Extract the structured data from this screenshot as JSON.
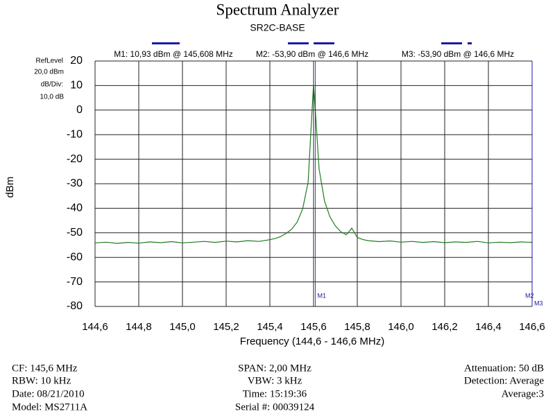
{
  "chart_data": {
    "type": "line",
    "title": "Spectrum Analyzer",
    "subtitle": "SR2C-BASE",
    "xlabel": "Frequency (144,6 - 146,6 MHz)",
    "ylabel": "dBm",
    "xlim": [
      144.6,
      146.6
    ],
    "ylim": [
      -80,
      20
    ],
    "xticks": [
      {
        "value": 144.6,
        "label": "144,6"
      },
      {
        "value": 144.8,
        "label": "144,8"
      },
      {
        "value": 145.0,
        "label": "145,0"
      },
      {
        "value": 145.2,
        "label": "145,2"
      },
      {
        "value": 145.4,
        "label": "145,4"
      },
      {
        "value": 145.6,
        "label": "145,6"
      },
      {
        "value": 145.8,
        "label": "145,8"
      },
      {
        "value": 146.0,
        "label": "146,0"
      },
      {
        "value": 146.2,
        "label": "146,2"
      },
      {
        "value": 146.4,
        "label": "146,4"
      },
      {
        "value": 146.6,
        "label": "146,6"
      }
    ],
    "yticks": [
      20,
      10,
      0,
      -10,
      -20,
      -30,
      -40,
      -50,
      -60,
      -70,
      -80
    ],
    "grid": true,
    "x": [
      144.6,
      144.65,
      144.7,
      144.75,
      144.8,
      144.85,
      144.9,
      144.95,
      145.0,
      145.05,
      145.1,
      145.15,
      145.2,
      145.25,
      145.3,
      145.35,
      145.4,
      145.425,
      145.45,
      145.475,
      145.5,
      145.525,
      145.55,
      145.575,
      145.6,
      145.625,
      145.65,
      145.675,
      145.7,
      145.725,
      145.75,
      145.775,
      145.8,
      145.825,
      145.85,
      145.9,
      145.95,
      146.0,
      146.05,
      146.1,
      146.15,
      146.2,
      146.25,
      146.3,
      146.35,
      146.4,
      146.45,
      146.5,
      146.55,
      146.6
    ],
    "series": [
      {
        "color": "#1f7a1f",
        "values": [
          -54.1,
          -53.8,
          -54.3,
          -53.9,
          -54.2,
          -53.7,
          -54.0,
          -53.6,
          -54.1,
          -53.8,
          -53.5,
          -53.9,
          -53.4,
          -53.7,
          -53.2,
          -53.5,
          -52.8,
          -52.3,
          -51.5,
          -50.2,
          -48.5,
          -45.6,
          -40.2,
          -29.5,
          10.93,
          -23.8,
          -37.1,
          -43.5,
          -47.2,
          -49.6,
          -50.8,
          -48.1,
          -51.9,
          -52.7,
          -53.2,
          -53.6,
          -53.3,
          -53.8,
          -53.5,
          -53.9,
          -53.6,
          -54.0,
          -53.7,
          -53.9,
          -53.5,
          -54.1,
          -53.8,
          -54.0,
          -53.7,
          -53.9
        ]
      }
    ],
    "markers": [
      {
        "label": "M1",
        "x": 145.608,
        "value": 10.93,
        "readout": "M1: 10,93 dBm @ 145,608 MHz"
      },
      {
        "label": "M2",
        "x": 146.6,
        "value": -53.9,
        "readout": "M2: -53,90 dBm @ 146,6 MHz"
      },
      {
        "label": "M3",
        "x": 146.6,
        "value": -53.9,
        "readout": "M3: -53,90 dBm @ 146,6 MHz"
      }
    ],
    "marker_color": "#1a1aa6",
    "settings_labels": [
      "RefLevel",
      "20,0 dBm",
      "dB/Div:",
      "10,0 dB"
    ],
    "footer": {
      "left": [
        "CF: 145,6 MHz",
        "RBW: 10 kHz",
        "Date: 08/21/2010",
        "Model: MS2711A"
      ],
      "center": [
        "SPAN: 2,00 MHz",
        "VBW: 3 kHz",
        "Time: 15:19:36",
        "Serial #: 00039124"
      ],
      "right": [
        "Attenuation: 50 dB",
        "Detection: Average",
        "Average:3"
      ]
    }
  }
}
